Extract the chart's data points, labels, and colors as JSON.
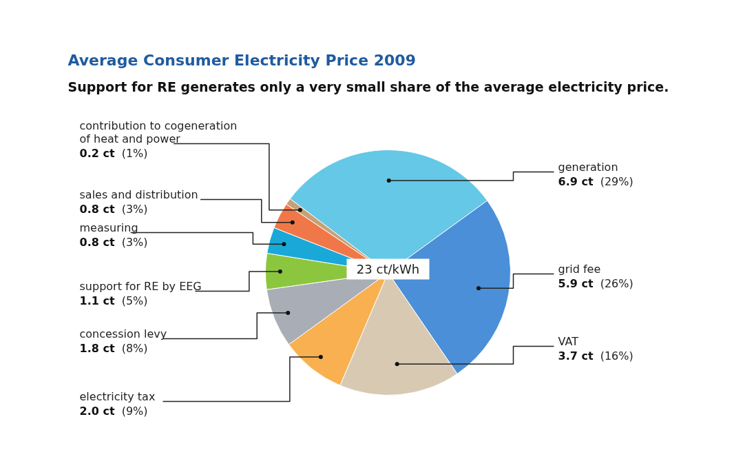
{
  "chart_data": {
    "type": "pie",
    "title": "Average Consumer Electricity Price 2009",
    "subtitle": "Support for RE generates only a very small share of the average electricity price.",
    "categories": [
      "generation",
      "grid fee",
      "VAT",
      "electricity tax",
      "concession levy",
      "support for RE by EEG",
      "measuring",
      "sales and distribution",
      "contribution to cogeneration of heat and power"
    ],
    "values": [
      6.9,
      5.9,
      3.7,
      2.0,
      1.8,
      1.1,
      0.8,
      0.8,
      0.2
    ],
    "colors": [
      "#64c8e6",
      "#4a8fd8",
      "#d8cab2",
      "#f8b050",
      "#a9aeb6",
      "#8cc63f",
      "#1aa8d8",
      "#f07848",
      "#c8a078"
    ],
    "value_labels": [
      "6.9 ct (29%)",
      "5.9 ct (26%)",
      "3.7 ct (16%)",
      "2.0 ct (9%)",
      "1.8 ct (8%)",
      "1.1 ct (5%)",
      "0.8 ct (3%)",
      "0.8 ct (3%)",
      "0.2 ct (1%)"
    ],
    "annotations": [
      "23 ct/kWh"
    ]
  }
}
